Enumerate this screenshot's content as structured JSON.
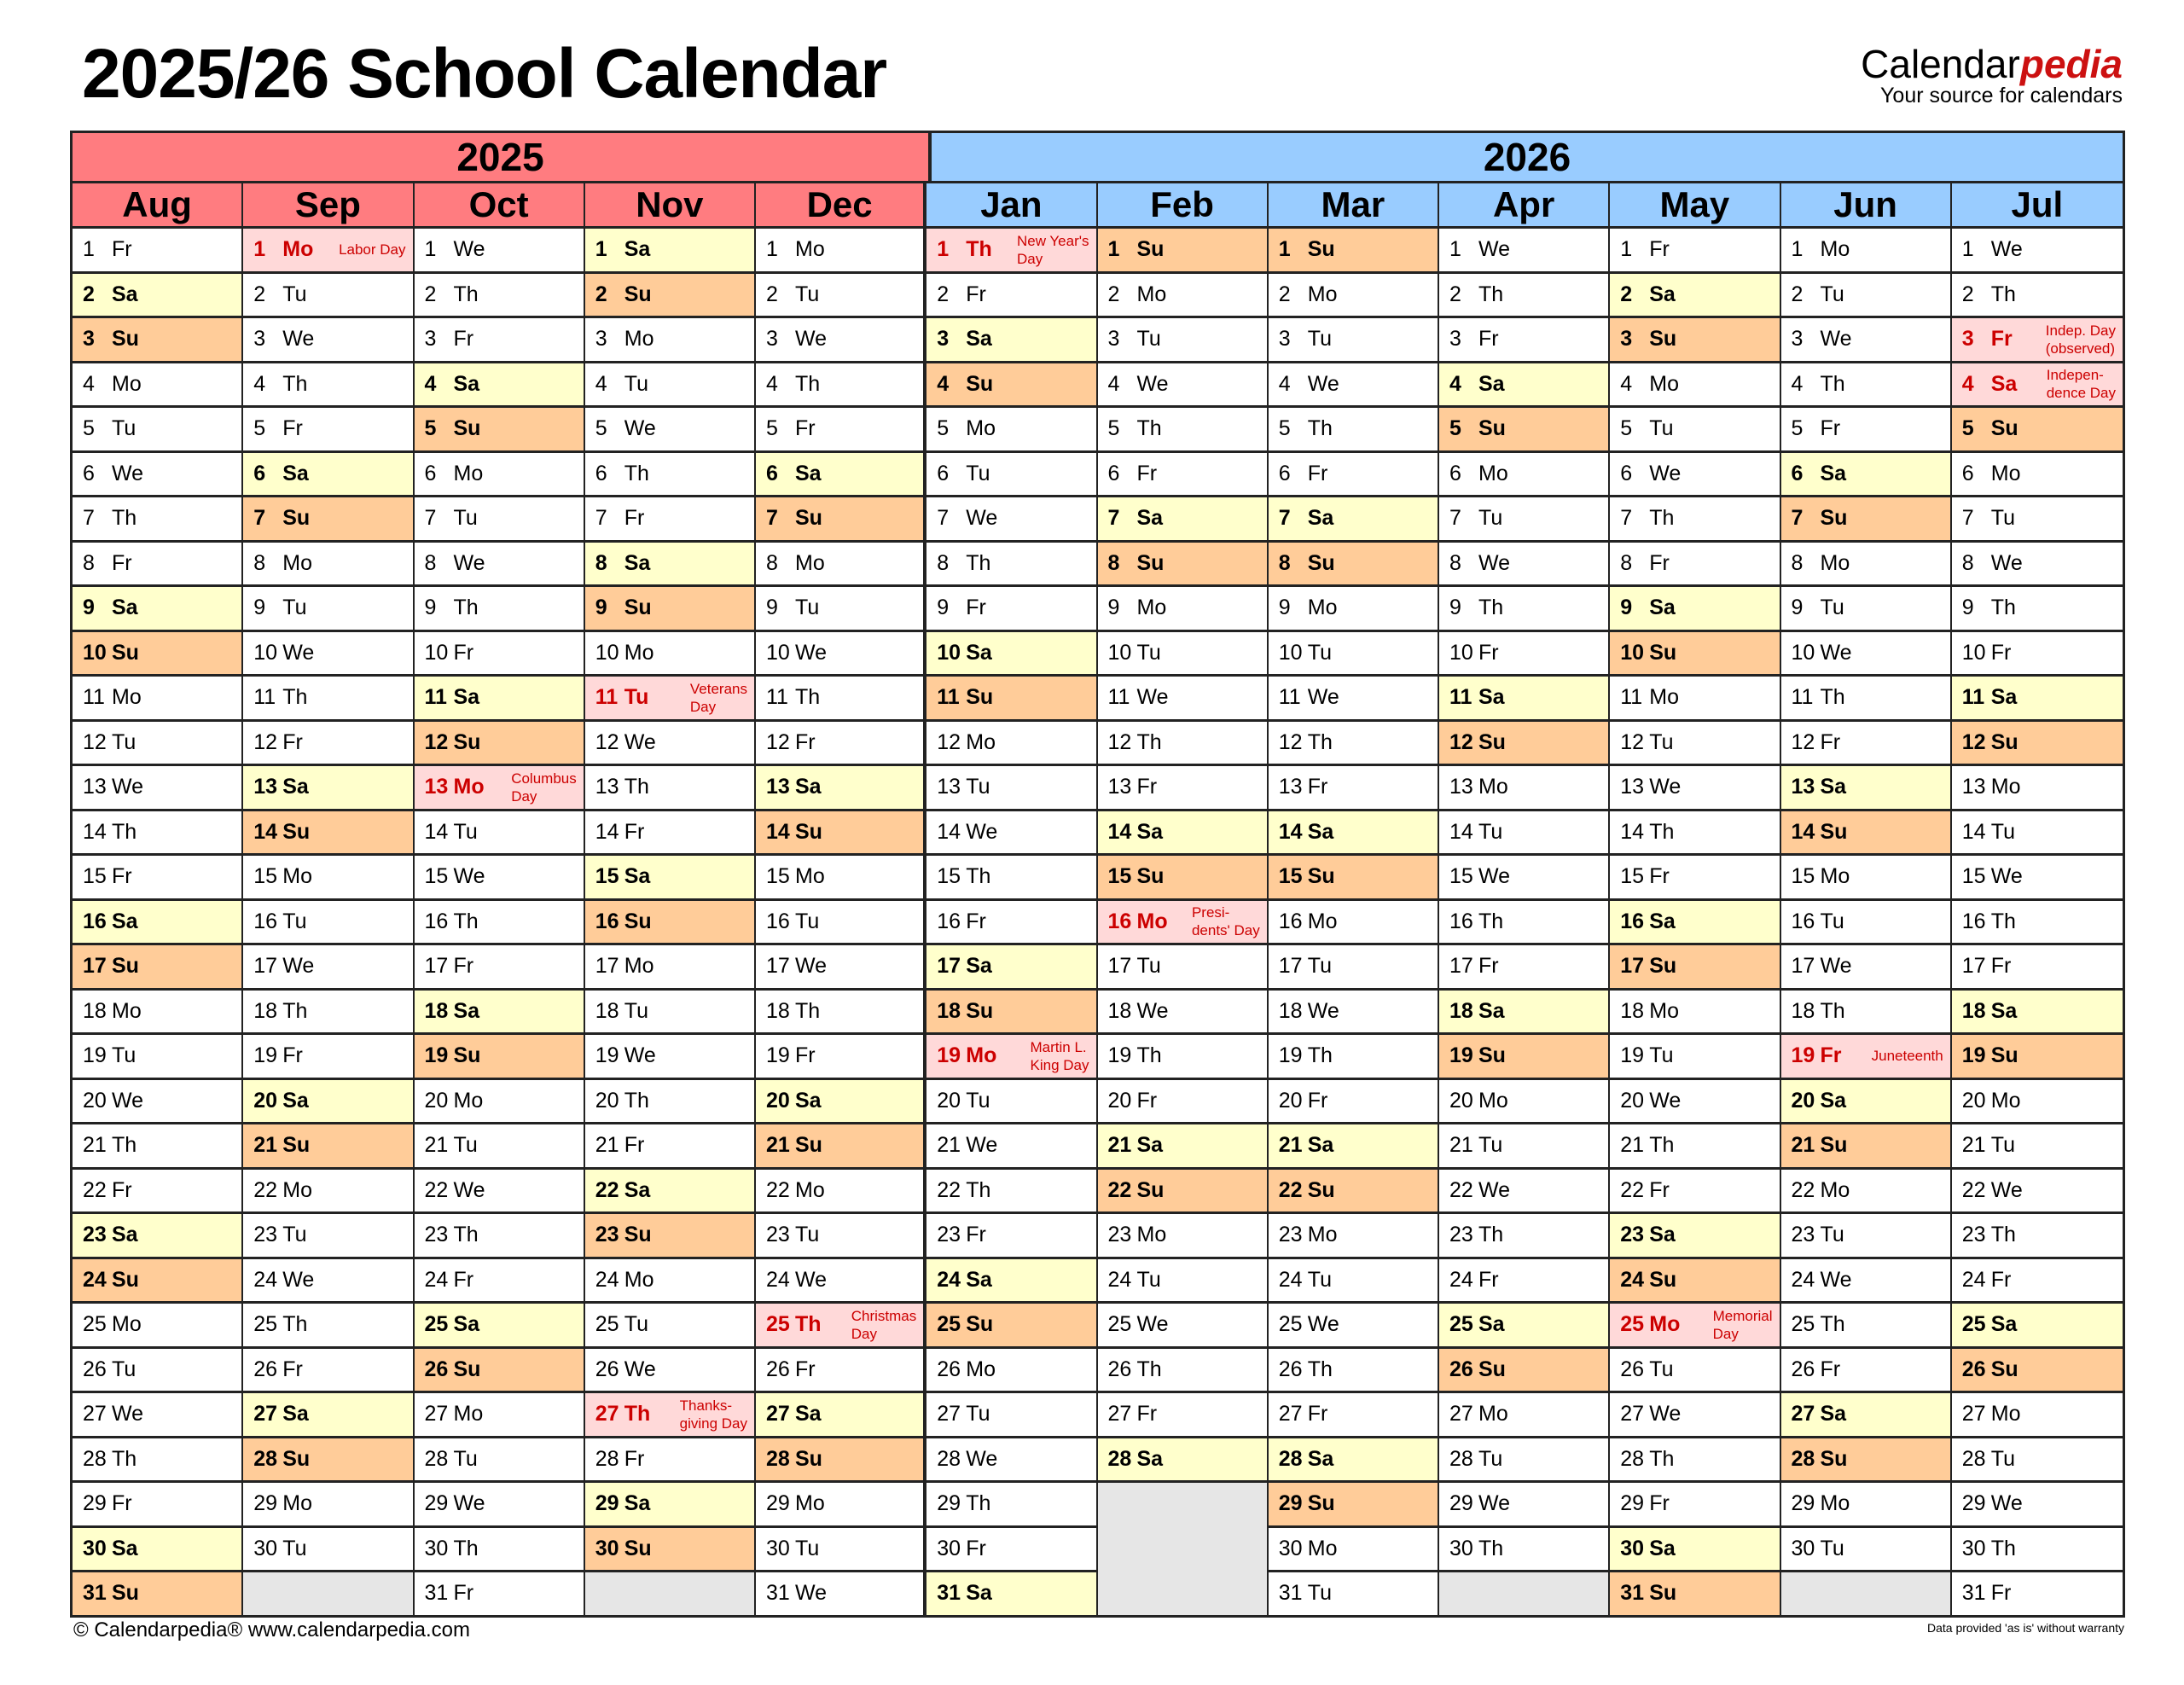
{
  "title": "2025/26 School Calendar",
  "brand": {
    "name_plain": "Calendar",
    "name_accent": "pedia",
    "tagline": "Your source for calendars"
  },
  "colors": {
    "year_2025": "#FF7C80",
    "year_2026": "#99CCFF",
    "saturday": "#FFFFCC",
    "sunday": "#FFCC99",
    "holiday": "#FFD9D9",
    "holiday_text": "#CC0000",
    "empty": "#E6E6E6"
  },
  "weekday_names": [
    "Mo",
    "Tu",
    "We",
    "Th",
    "Fr",
    "Sa",
    "Su"
  ],
  "years": [
    {
      "label": "2025",
      "months": [
        {
          "name": "Aug",
          "first_weekday": 4,
          "days": 31,
          "holidays": {}
        },
        {
          "name": "Sep",
          "first_weekday": 0,
          "days": 30,
          "holidays": {
            "1": "Labor Day"
          }
        },
        {
          "name": "Oct",
          "first_weekday": 2,
          "days": 31,
          "holidays": {
            "13": "Columbus\nDay"
          }
        },
        {
          "name": "Nov",
          "first_weekday": 5,
          "days": 30,
          "holidays": {
            "11": "Veterans\nDay",
            "27": "Thanks-\ngiving Day"
          }
        },
        {
          "name": "Dec",
          "first_weekday": 0,
          "days": 31,
          "holidays": {
            "25": "Christmas\nDay"
          }
        }
      ]
    },
    {
      "label": "2026",
      "months": [
        {
          "name": "Jan",
          "first_weekday": 3,
          "days": 31,
          "holidays": {
            "1": "New Year's\nDay",
            "19": "Martin L.\nKing Day"
          }
        },
        {
          "name": "Feb",
          "first_weekday": 6,
          "days": 28,
          "holidays": {
            "16": "Presi-\ndents' Day"
          }
        },
        {
          "name": "Mar",
          "first_weekday": 6,
          "days": 31,
          "holidays": {}
        },
        {
          "name": "Apr",
          "first_weekday": 2,
          "days": 30,
          "holidays": {}
        },
        {
          "name": "May",
          "first_weekday": 4,
          "days": 31,
          "holidays": {
            "25": "Memorial\nDay"
          }
        },
        {
          "name": "Jun",
          "first_weekday": 0,
          "days": 30,
          "holidays": {
            "19": "Juneteenth"
          }
        },
        {
          "name": "Jul",
          "first_weekday": 2,
          "days": 31,
          "holidays": {
            "3": "Indep. Day\n(observed)",
            "4": "Indepen-\ndence Day"
          }
        }
      ]
    }
  ],
  "footer": {
    "copyright": "© Calendarpedia®   www.calendarpedia.com",
    "disclaimer": "Data provided 'as is' without warranty"
  }
}
